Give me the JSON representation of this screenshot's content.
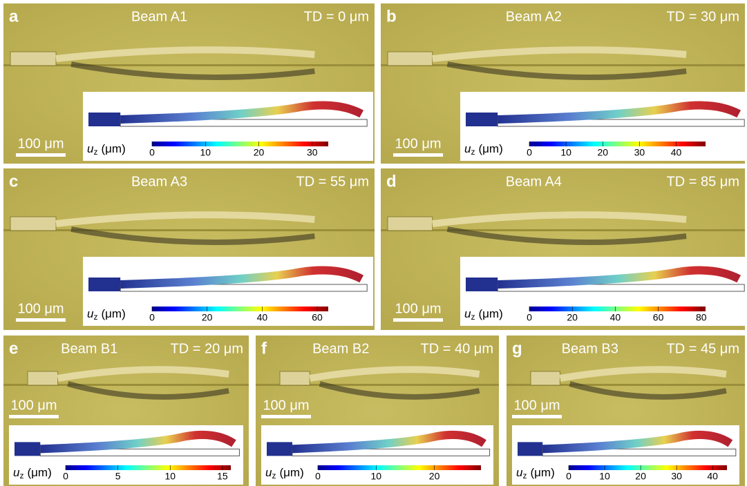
{
  "colorbar_label": {
    "symbol": "u",
    "subscript": "z",
    "unit": "(μm)"
  },
  "scale_bar": "100 μm",
  "panels": [
    {
      "letter": "a",
      "title": "Beam A1",
      "td": "TD = 0 μm",
      "clim": [
        0,
        33
      ],
      "ticks": [
        0,
        10,
        20,
        30
      ]
    },
    {
      "letter": "b",
      "title": "Beam A2",
      "td": "TD = 30 μm",
      "clim": [
        0,
        48
      ],
      "ticks": [
        0,
        10,
        20,
        30,
        40
      ]
    },
    {
      "letter": "c",
      "title": "Beam A3",
      "td": "TD = 55 μm",
      "clim": [
        0,
        64
      ],
      "ticks": [
        0,
        20,
        40,
        60
      ]
    },
    {
      "letter": "d",
      "title": "Beam A4",
      "td": "TD = 85 μm",
      "clim": [
        0,
        82
      ],
      "ticks": [
        0,
        20,
        40,
        60,
        80
      ]
    },
    {
      "letter": "e",
      "title": "Beam B1",
      "td": "TD = 20 μm",
      "clim": [
        0,
        15.8
      ],
      "ticks": [
        0,
        5,
        10,
        15
      ]
    },
    {
      "letter": "f",
      "title": "Beam B2",
      "td": "TD = 40 μm",
      "clim": [
        0,
        28
      ],
      "ticks": [
        0,
        10,
        20
      ]
    },
    {
      "letter": "g",
      "title": "Beam B3",
      "td": "TD = 45 μm",
      "clim": [
        0,
        44
      ],
      "ticks": [
        0,
        10,
        20,
        30,
        40
      ]
    }
  ]
}
